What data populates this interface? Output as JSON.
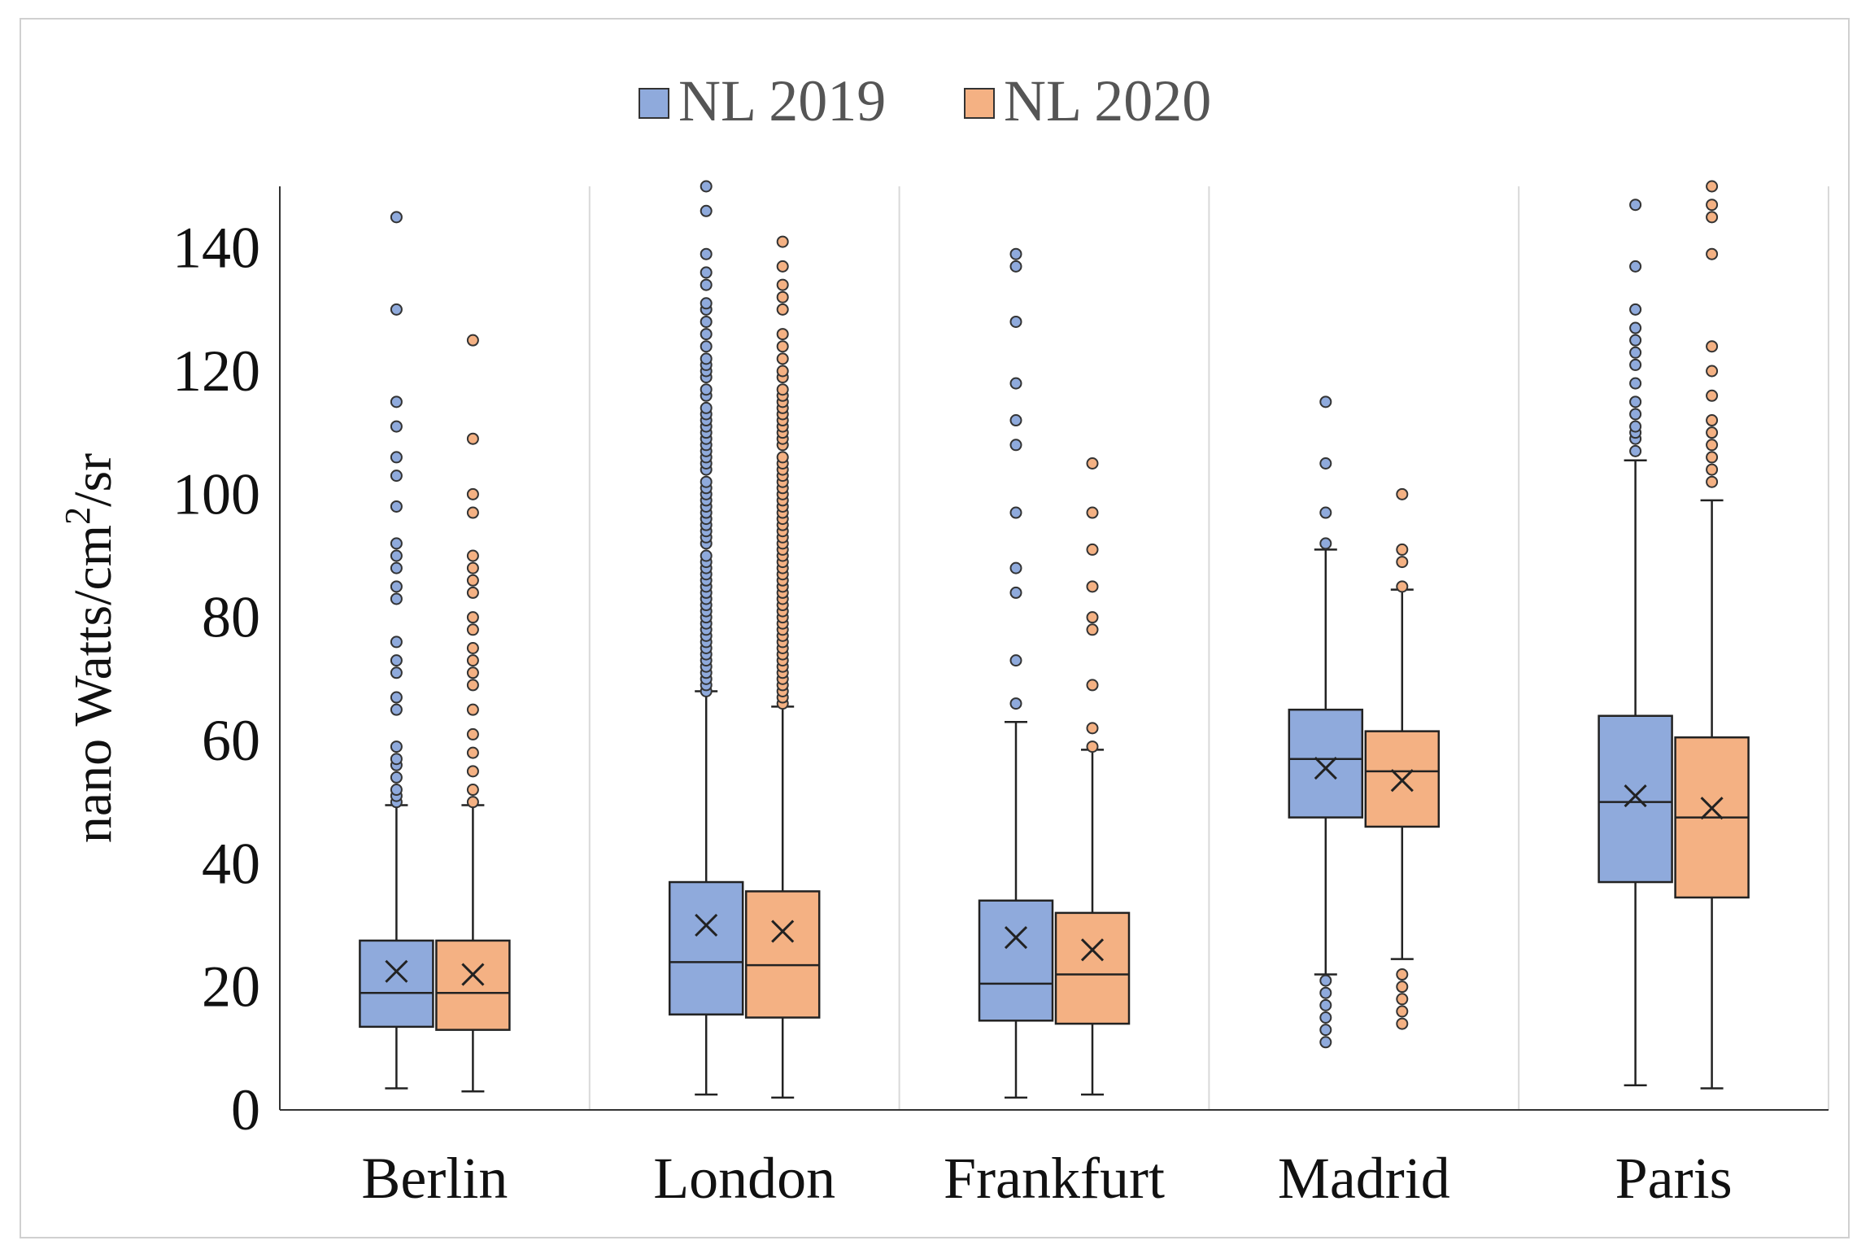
{
  "chart_data": {
    "type": "boxplot",
    "ylabel": "nano Watts/cm²/sr",
    "ylabel_parts": {
      "main": "nano Watts/cm",
      "sup": "2",
      "tail": "/sr"
    },
    "ylim": [
      0,
      150
    ],
    "yticks": [
      0,
      20,
      40,
      60,
      80,
      100,
      120,
      140
    ],
    "categories": [
      "Berlin",
      "London",
      "Frankfurt",
      "Madrid",
      "Paris"
    ],
    "legend": {
      "placement": "top-center"
    },
    "series": [
      {
        "name": "NL 2019",
        "color": "#8faadc",
        "outlier_color": "#8faadc",
        "boxes": [
          {
            "category": "Berlin",
            "whisker_low": 3.5,
            "q1": 13.5,
            "median": 19,
            "q3": 27.5,
            "whisker_high": 49.5,
            "mean": 22.5,
            "outliers": [
              50,
              51,
              52,
              54,
              56,
              57,
              59,
              65,
              67,
              71,
              73,
              76,
              83,
              85,
              88,
              90,
              92,
              98,
              103,
              106,
              111,
              115,
              130,
              145
            ]
          },
          {
            "category": "London",
            "whisker_low": 2.5,
            "q1": 15.5,
            "median": 24,
            "q3": 37,
            "whisker_high": 68,
            "mean": 30,
            "outliers": [
              68,
              69,
              70,
              71,
              72,
              73,
              74,
              75,
              76,
              77,
              78,
              79,
              80,
              81,
              82,
              83,
              84,
              85,
              86,
              87,
              88,
              89,
              90,
              92,
              93,
              94,
              95,
              96,
              97,
              98,
              99,
              100,
              101,
              102,
              104,
              105,
              106,
              107,
              108,
              109,
              110,
              111,
              112,
              113,
              114,
              116,
              117,
              119,
              120,
              121,
              122,
              124,
              126,
              128,
              130,
              131,
              134,
              136,
              139,
              146,
              150
            ]
          },
          {
            "category": "Frankfurt",
            "whisker_low": 2,
            "q1": 14.5,
            "median": 20.5,
            "q3": 34,
            "whisker_high": 63,
            "mean": 28,
            "outliers": [
              66,
              73,
              84,
              88,
              97,
              108,
              112,
              118,
              128,
              137,
              139
            ]
          },
          {
            "category": "Madrid",
            "whisker_low": 22,
            "q1": 47.5,
            "median": 57,
            "q3": 65,
            "whisker_high": 91,
            "mean": 55.5,
            "outliers": [
              11,
              13,
              15,
              17,
              19,
              21,
              92,
              97,
              105,
              115
            ]
          },
          {
            "category": "Paris",
            "whisker_low": 4,
            "q1": 37,
            "median": 50,
            "q3": 64,
            "whisker_high": 105.5,
            "mean": 51,
            "outliers": [
              107,
              109,
              110,
              111,
              113,
              115,
              118,
              121,
              123,
              125,
              127,
              130,
              137,
              147
            ]
          }
        ]
      },
      {
        "name": "NL 2020",
        "color": "#f4b183",
        "outlier_color": "#f4b183",
        "boxes": [
          {
            "category": "Berlin",
            "whisker_low": 3,
            "q1": 13,
            "median": 19,
            "q3": 27.5,
            "whisker_high": 49.5,
            "mean": 22,
            "outliers": [
              50,
              52,
              55,
              58,
              61,
              65,
              69,
              71,
              73,
              75,
              78,
              80,
              84,
              86,
              88,
              90,
              97,
              100,
              109,
              125
            ]
          },
          {
            "category": "London",
            "whisker_low": 2,
            "q1": 15,
            "median": 23.5,
            "q3": 35.5,
            "whisker_high": 65.5,
            "mean": 29,
            "outliers": [
              66,
              67,
              68,
              69,
              70,
              71,
              72,
              73,
              74,
              75,
              76,
              77,
              78,
              79,
              80,
              81,
              82,
              83,
              84,
              85,
              86,
              87,
              88,
              89,
              90,
              91,
              92,
              93,
              94,
              95,
              96,
              97,
              98,
              99,
              100,
              101,
              102,
              103,
              104,
              105,
              106,
              108,
              109,
              110,
              111,
              112,
              113,
              114,
              115,
              116,
              117,
              119,
              120,
              122,
              124,
              126,
              130,
              132,
              134,
              137,
              141
            ]
          },
          {
            "category": "Frankfurt",
            "whisker_low": 2.5,
            "q1": 14,
            "median": 22,
            "q3": 32,
            "whisker_high": 58.5,
            "mean": 26,
            "outliers": [
              59,
              62,
              69,
              78,
              80,
              85,
              91,
              97,
              105
            ]
          },
          {
            "category": "Madrid",
            "whisker_low": 24.5,
            "q1": 46,
            "median": 55,
            "q3": 61.5,
            "whisker_high": 84.5,
            "mean": 53.5,
            "outliers": [
              14,
              16,
              18,
              20,
              22,
              85,
              89,
              91,
              100
            ]
          },
          {
            "category": "Paris",
            "whisker_low": 3.5,
            "q1": 34.5,
            "median": 47.5,
            "q3": 60.5,
            "whisker_high": 99,
            "mean": 49,
            "outliers": [
              102,
              104,
              106,
              108,
              110,
              112,
              116,
              120,
              124,
              139,
              145,
              147,
              150
            ]
          }
        ]
      }
    ]
  }
}
